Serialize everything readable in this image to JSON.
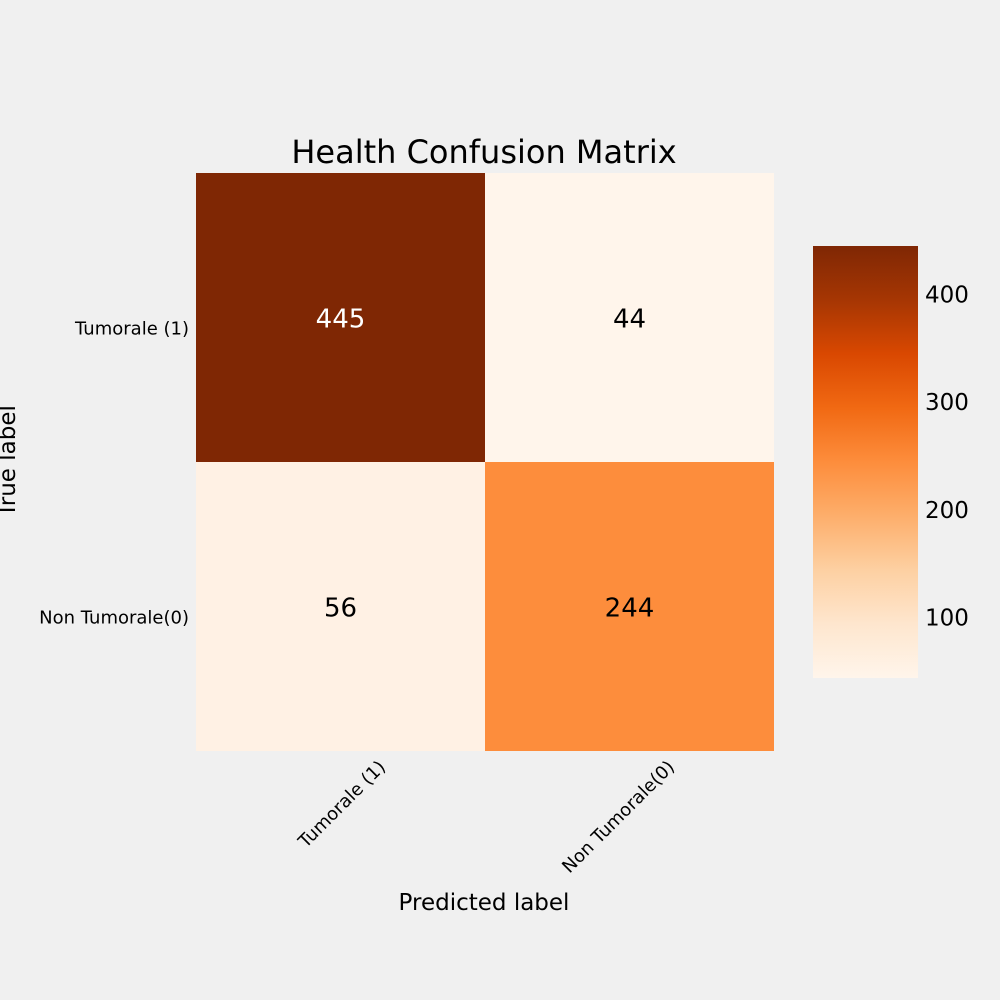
{
  "chart_data": {
    "type": "heatmap",
    "title": "Health Confusion Matrix",
    "xlabel": "Predicted label",
    "ylabel": "True label",
    "row_labels": [
      "Tumorale (1)",
      "Non Tumorale(0)"
    ],
    "col_labels": [
      "Tumorale (1)",
      "Non Tumorale(0)"
    ],
    "values": [
      [
        445,
        44
      ],
      [
        56,
        244
      ]
    ],
    "colormap": "Oranges",
    "colorbar": {
      "range": [
        44,
        445
      ],
      "ticks": [
        100,
        200,
        300,
        400
      ],
      "tick_labels": [
        "100",
        "200",
        "300",
        "400"
      ]
    },
    "grid": false
  },
  "colors": {
    "background": "#f0f0f0",
    "text_dark": "#000000",
    "text_light": "#ffffff",
    "colormap_stops": [
      "#fff5eb",
      "#fee6ce",
      "#fdd0a2",
      "#fdae6b",
      "#fd8d3c",
      "#f16913",
      "#d94801",
      "#a63603",
      "#7f2704"
    ]
  }
}
